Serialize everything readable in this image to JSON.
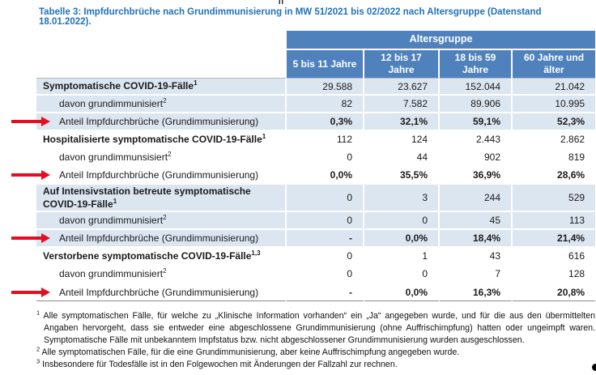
{
  "artifacts": {
    "top_mark": "II"
  },
  "title": "Tabelle 3: Impfdurchbrüche nach Grundimmunisierung in MW 51/2021 bis 02/2022 nach Altersgruppe (Datenstand 18.01.2022).",
  "colors": {
    "header_blue": "#4f81bd",
    "row_light_blue": "#dce6f1",
    "title_blue": "#2272b9",
    "arrow_red": "#e01020"
  },
  "table": {
    "group_header": "Altersgruppe",
    "columns": [
      "5 bis 11 Jahre",
      "12 bis 17 Jahre",
      "18 bis 59 Jahre",
      "60 Jahre und älter"
    ],
    "sections": [
      {
        "shaded": true,
        "rows": [
          {
            "label": "Symptomatische COVID-19-Fälle",
            "sup": "1",
            "values": [
              "29.588",
              "23.627",
              "152.044",
              "21.042"
            ]
          },
          {
            "label": "davon grundimmunisiert",
            "sup": "2",
            "values": [
              "82",
              "7.582",
              "89.906",
              "10.995"
            ]
          },
          {
            "label": "Anteil Impfdurchbrüche (Grundimmunisierung)",
            "sup": "",
            "values": [
              "0,3%",
              "32,1%",
              "59,1%",
              "52,3%"
            ]
          }
        ]
      },
      {
        "shaded": false,
        "rows": [
          {
            "label": "Hospitalisierte symptomatische COVID-19-Fälle",
            "sup": "1",
            "values": [
              "112",
              "124",
              "2.443",
              "2.862"
            ]
          },
          {
            "label": "davon grundimmunsisiert",
            "sup": "2",
            "values": [
              "0",
              "44",
              "902",
              "819"
            ]
          },
          {
            "label": "Anteil Impfdurchbrüche (Grundimmunisierung)",
            "sup": "",
            "values": [
              "0,0%",
              "35,5%",
              "36,9%",
              "28,6%"
            ]
          }
        ]
      },
      {
        "shaded": true,
        "rows": [
          {
            "label": "Auf Intensivstation betreute symptomatische COVID-19-Fälle",
            "sup": "1",
            "values": [
              "0",
              "3",
              "244",
              "529"
            ]
          },
          {
            "label": "davon grundimmunisiert",
            "sup": "2",
            "values": [
              "0",
              "0",
              "45",
              "113"
            ]
          },
          {
            "label": "Anteil Impfdurchbrüche (Grundimmunisierung)",
            "sup": "",
            "values": [
              "-",
              "0,0%",
              "18,4%",
              "21,4%"
            ]
          }
        ]
      },
      {
        "shaded": false,
        "rows": [
          {
            "label": "Verstorbene symptomatische COVID-19-Fälle",
            "sup": "1,3",
            "values": [
              "0",
              "1",
              "43",
              "616"
            ]
          },
          {
            "label": "davon grundimmunisiert",
            "sup": "2",
            "values": [
              "0",
              "0",
              "7",
              "128"
            ]
          },
          {
            "label": "Anteil Impfdurchbrüche (Grundimmunisierung)",
            "sup": "",
            "values": [
              "-",
              "0,0%",
              "16,3%",
              "20,8%"
            ]
          }
        ]
      }
    ]
  },
  "footnotes": [
    {
      "marker": "1",
      "text": "Alle symptomatischen Fälle, für welche zu „Klinische Information vorhanden“ ein „Ja“ angegeben wurde, und für die aus den übermittelten Angaben hervorgeht, dass sie entweder eine abgeschlossene Grundimmunisierung (ohne Auffrischimpfung) hatten oder ungeimpft waren. Symptomatische Fälle mit unbekanntem Impfstatus bzw. nicht abgeschlossener Grundimmunisierung wurden ausgeschlossen."
    },
    {
      "marker": "2",
      "text": "Alle symptomatischen Fälle, für die eine Grundimmunisierung, aber keine Auffrischimpfung angegeben wurde."
    },
    {
      "marker": "3",
      "text": "Insbesondere für Todesfälle ist in den Folgewochen mit Änderungen der Fallzahl zur rechnen."
    }
  ]
}
